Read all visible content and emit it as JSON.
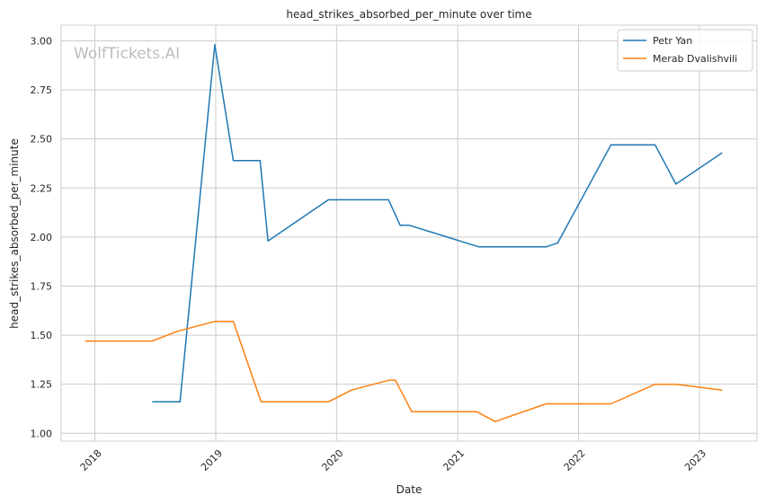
{
  "chart_data": {
    "type": "line",
    "title": "head_strikes_absorbed_per_minute over time",
    "xlabel": "Date",
    "ylabel": "head_strikes_absorbed_per_minute",
    "watermark": "WolfTickets.AI",
    "x_ticks": [
      "2018",
      "2019",
      "2020",
      "2021",
      "2022",
      "2023"
    ],
    "y_ticks": [
      "1.00",
      "1.25",
      "1.50",
      "1.75",
      "2.00",
      "2.25",
      "2.50",
      "2.75",
      "3.00"
    ],
    "xlim": [
      "2017-09-21",
      "2023-06-24"
    ],
    "ylim": [
      0.96,
      3.08
    ],
    "grid": true,
    "legend_position": "top-right",
    "series": [
      {
        "name": "Petr Yan",
        "color": "#1f77b4",
        "points": [
          [
            "2018-06-23",
            1.16
          ],
          [
            "2018-09-15",
            1.16
          ],
          [
            "2018-12-29",
            2.98
          ],
          [
            "2019-02-23",
            2.39
          ],
          [
            "2019-05-15",
            2.39
          ],
          [
            "2019-06-08",
            1.98
          ],
          [
            "2019-12-07",
            2.19
          ],
          [
            "2020-06-06",
            2.19
          ],
          [
            "2020-07-11",
            2.06
          ],
          [
            "2020-08-08",
            2.06
          ],
          [
            "2021-03-06",
            1.95
          ],
          [
            "2021-09-25",
            1.95
          ],
          [
            "2021-10-30",
            1.97
          ],
          [
            "2022-04-09",
            2.47
          ],
          [
            "2022-08-20",
            2.47
          ],
          [
            "2022-10-22",
            2.27
          ],
          [
            "2023-03-11",
            2.43
          ]
        ]
      },
      {
        "name": "Merab Dvalishvili",
        "color": "#ff7f0e",
        "points": [
          [
            "2017-12-02",
            1.47
          ],
          [
            "2018-06-23",
            1.47
          ],
          [
            "2018-09-08",
            1.52
          ],
          [
            "2018-12-29",
            1.57
          ],
          [
            "2019-02-23",
            1.57
          ],
          [
            "2019-05-18",
            1.16
          ],
          [
            "2019-12-07",
            1.16
          ],
          [
            "2020-02-15",
            1.22
          ],
          [
            "2020-06-06",
            1.27
          ],
          [
            "2020-06-27",
            1.27
          ],
          [
            "2020-08-15",
            1.11
          ],
          [
            "2021-02-27",
            1.11
          ],
          [
            "2021-04-24",
            1.06
          ],
          [
            "2021-09-25",
            1.15
          ],
          [
            "2022-04-09",
            1.15
          ],
          [
            "2022-08-20",
            1.25
          ],
          [
            "2022-10-22",
            1.25
          ],
          [
            "2023-03-11",
            1.22
          ]
        ]
      }
    ]
  }
}
